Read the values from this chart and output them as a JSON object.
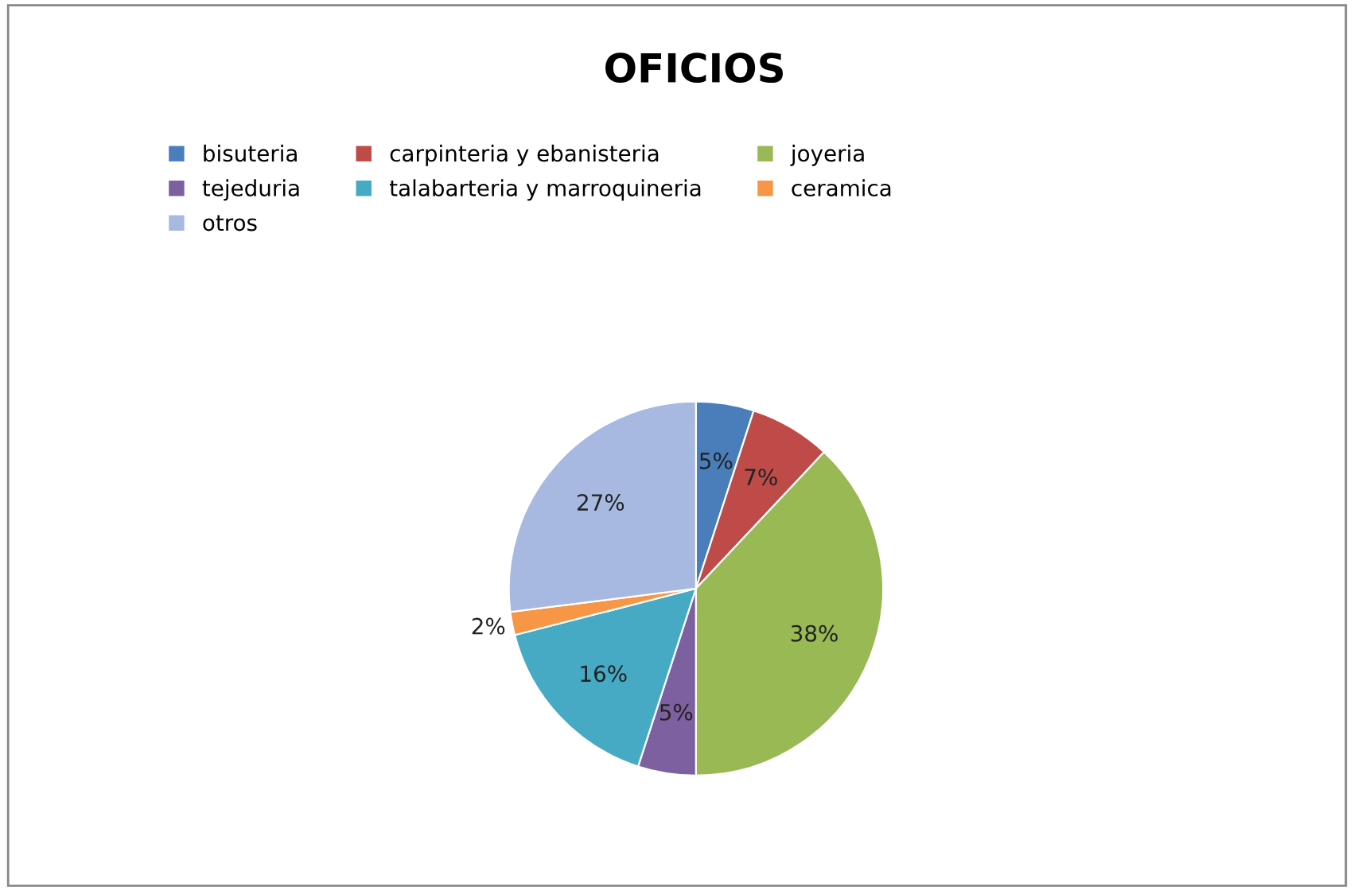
{
  "chart_data": {
    "type": "pie",
    "title": "OFICIOS",
    "categories": [
      "bisuteria",
      "carpinteria y ebanisteria",
      "joyeria",
      "tejeduria",
      "talabarteria y marroquineria",
      "ceramica",
      "otros"
    ],
    "values": [
      5,
      7,
      38,
      5,
      16,
      2,
      27
    ],
    "colors": [
      "#4a7ebb",
      "#be4b48",
      "#98b954",
      "#7d60a0",
      "#46aac5",
      "#f79646",
      "#a7b9e0"
    ],
    "value_labels": [
      "5%",
      "7%",
      "38%",
      "5%",
      "16%",
      "2%",
      "27%"
    ],
    "legend": "top"
  }
}
